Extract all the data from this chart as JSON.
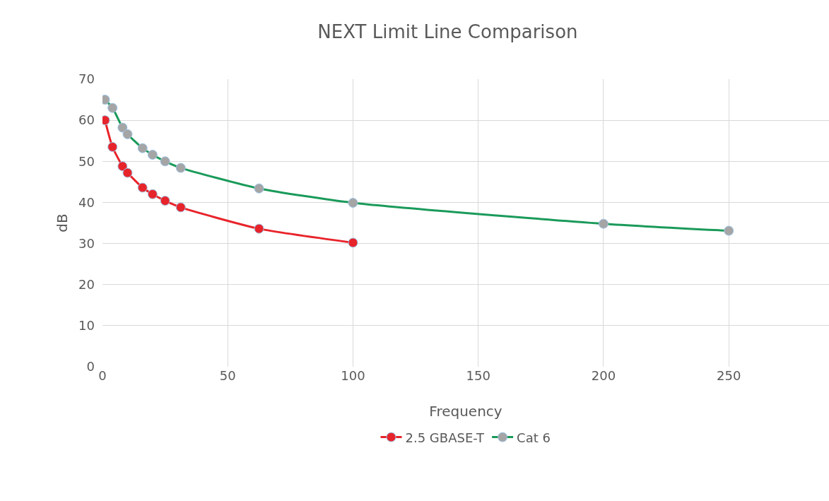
{
  "chart_data": {
    "type": "line",
    "title": "NEXT Limit Line Comparison",
    "xlabel": "Frequency",
    "ylabel": "dB",
    "series": [
      {
        "name": "2.5 GBASE-T",
        "color": "#e8242b",
        "x": [
          1,
          4,
          8,
          10,
          16,
          20,
          25,
          31.25,
          62.5,
          100
        ],
        "values": [
          60,
          53.5,
          48.8,
          47.2,
          43.6,
          42,
          40.4,
          38.8,
          33.6,
          30.2
        ]
      },
      {
        "name": "Cat 6",
        "color": "#1a9a5a",
        "x": [
          1,
          4,
          8,
          10,
          16,
          20,
          25,
          31.25,
          62.5,
          100,
          200,
          250
        ],
        "values": [
          65,
          63,
          58.2,
          56.6,
          53.2,
          51.6,
          50,
          48.4,
          43.4,
          39.9,
          34.8,
          33.1
        ]
      }
    ],
    "xlim": [
      0,
      290
    ],
    "xticks": [
      0,
      50,
      100,
      150,
      200,
      250
    ],
    "ylim": [
      0,
      70
    ],
    "yticks": [
      0,
      10,
      20,
      30,
      40,
      50,
      60,
      70
    ],
    "grid": true,
    "legend": "bottom",
    "marker": "circle",
    "line_style": "solid"
  }
}
